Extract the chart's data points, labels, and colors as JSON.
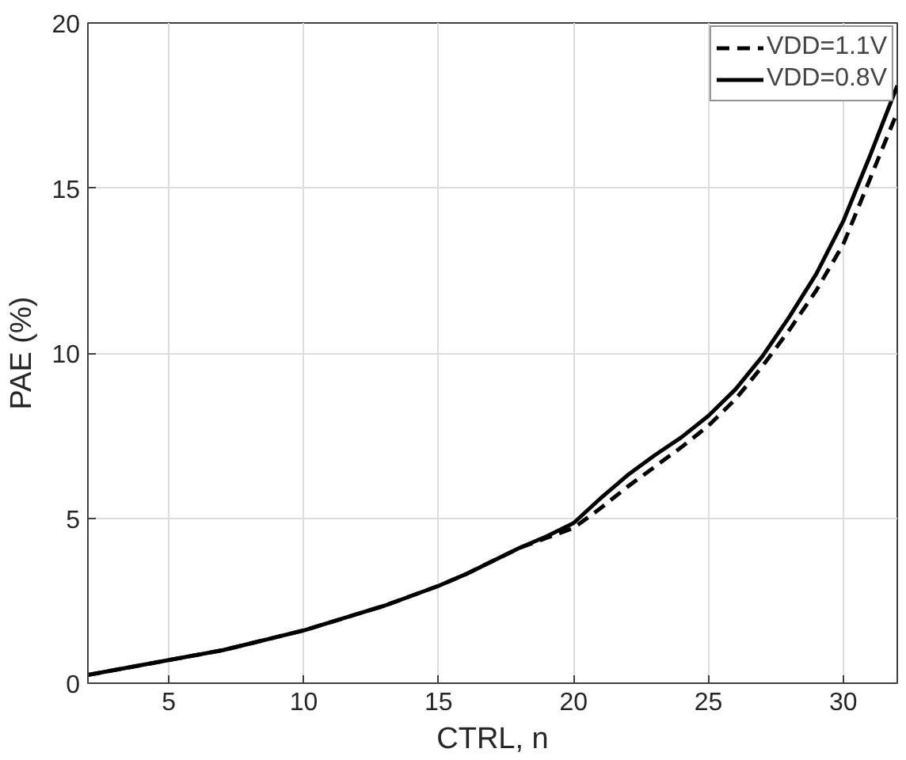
{
  "chart_data": {
    "type": "line",
    "xlabel": "CTRL, n",
    "ylabel": "PAE (%)",
    "x": [
      2,
      3,
      4,
      5,
      6,
      7,
      8,
      9,
      10,
      11,
      12,
      13,
      14,
      15,
      16,
      17,
      18,
      19,
      20,
      21,
      22,
      23,
      24,
      25,
      26,
      27,
      28,
      29,
      30,
      31,
      32
    ],
    "series": [
      {
        "name": "VDD=1.1V",
        "color": "#000000",
        "line_style": "dashed",
        "values": [
          0.25,
          0.4,
          0.55,
          0.7,
          0.85,
          1.0,
          1.2,
          1.4,
          1.6,
          1.85,
          2.1,
          2.35,
          2.65,
          2.95,
          3.3,
          3.7,
          4.1,
          4.4,
          4.7,
          5.3,
          5.95,
          6.55,
          7.15,
          7.8,
          8.6,
          9.6,
          10.7,
          11.9,
          13.3,
          15.3,
          17.3
        ]
      },
      {
        "name": "VDD=0.8V",
        "color": "#000000",
        "line_style": "solid",
        "values": [
          0.25,
          0.4,
          0.55,
          0.7,
          0.85,
          1.0,
          1.2,
          1.4,
          1.6,
          1.85,
          2.1,
          2.35,
          2.65,
          2.95,
          3.3,
          3.7,
          4.1,
          4.45,
          4.85,
          5.6,
          6.3,
          6.9,
          7.45,
          8.1,
          8.9,
          9.9,
          11.1,
          12.4,
          14.0,
          16.0,
          18.1
        ]
      }
    ],
    "xlim": [
      2,
      32
    ],
    "xticks": [
      5,
      10,
      15,
      20,
      25,
      30
    ],
    "ylim": [
      0,
      20
    ],
    "yticks": [
      0,
      5,
      10,
      15,
      20
    ],
    "grid": true,
    "legend": "top right"
  }
}
